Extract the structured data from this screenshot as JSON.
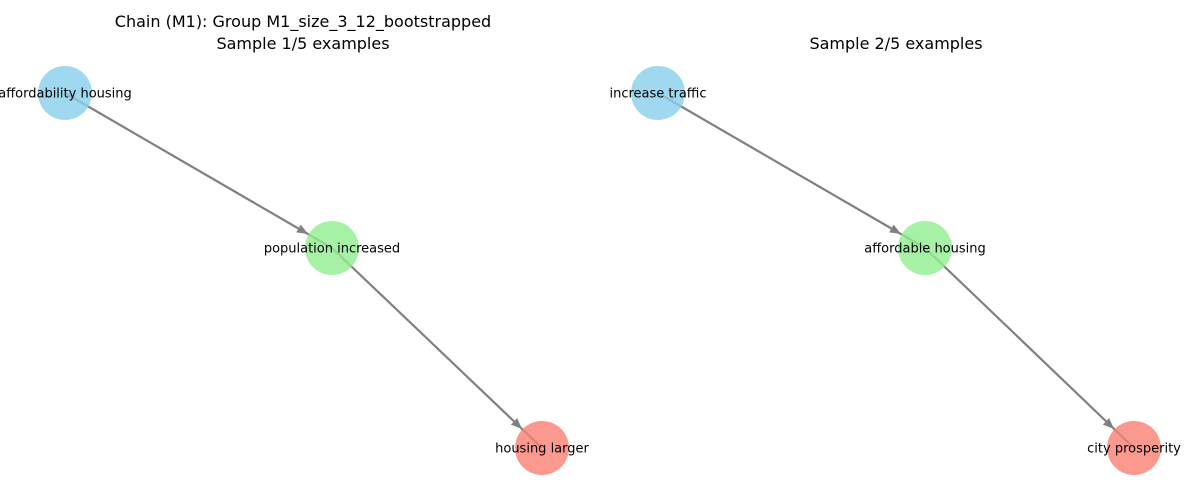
{
  "figure": {
    "panels": [
      {
        "title_line1": "Chain (M1): Group M1_size_3_12_bootstrapped",
        "title_line2": "Sample 1/5 examples",
        "nodes": [
          {
            "id": "a",
            "label": "affordability housing",
            "color": "#87CEEB"
          },
          {
            "id": "b",
            "label": "population increased",
            "color": "#90EE90"
          },
          {
            "id": "c",
            "label": "housing larger",
            "color": "#FA8072"
          }
        ],
        "edges": [
          {
            "from": "a",
            "to": "b"
          },
          {
            "from": "b",
            "to": "c"
          }
        ]
      },
      {
        "title_line1": "",
        "title_line2": "Sample 2/5 examples",
        "nodes": [
          {
            "id": "a",
            "label": "increase traffic",
            "color": "#87CEEB"
          },
          {
            "id": "b",
            "label": "affordable housing",
            "color": "#90EE90"
          },
          {
            "id": "c",
            "label": "city prosperity",
            "color": "#FA8072"
          }
        ],
        "edges": [
          {
            "from": "a",
            "to": "b"
          },
          {
            "from": "b",
            "to": "c"
          }
        ]
      }
    ],
    "edge_color": "#808080"
  }
}
